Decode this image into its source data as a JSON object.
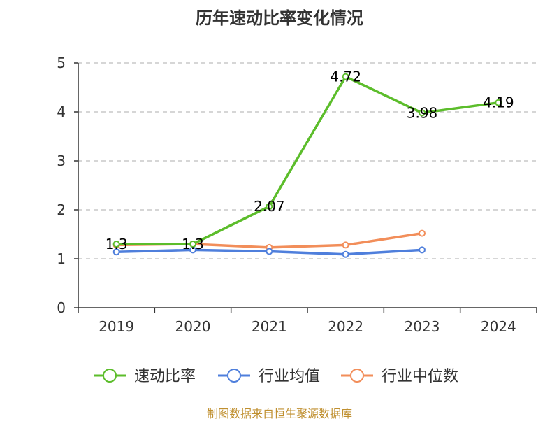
{
  "chart_data": {
    "type": "line",
    "title": "历年速动比率变化情况",
    "categories": [
      "2019",
      "2020",
      "2021",
      "2022",
      "2023",
      "2024"
    ],
    "ylim": [
      0,
      5
    ],
    "yticks": [
      0,
      1,
      2,
      3,
      4,
      5
    ],
    "grid": true,
    "legend_position": "bottom",
    "series": [
      {
        "name": "速动比率",
        "color": "#5cbd2b",
        "values": [
          1.3,
          1.3,
          2.07,
          4.72,
          3.98,
          4.19
        ],
        "labels": [
          "1.3",
          "1.3",
          "2.07",
          "4.72",
          "3.98",
          "4.19"
        ]
      },
      {
        "name": "行业均值",
        "color": "#4f7fdc",
        "values": [
          1.14,
          1.18,
          1.15,
          1.09,
          1.18,
          null
        ]
      },
      {
        "name": "行业中位数",
        "color": "#f28e5a",
        "values": [
          1.28,
          1.3,
          1.23,
          1.28,
          1.52,
          null
        ]
      }
    ]
  },
  "source": "制图数据来自恒生聚源数据库"
}
